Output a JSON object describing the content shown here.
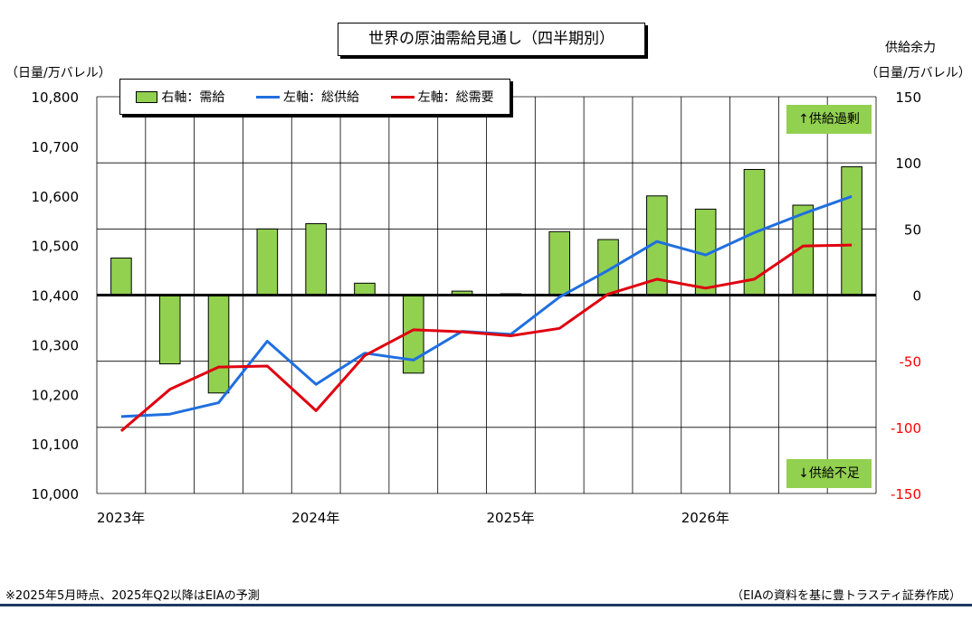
{
  "header": {
    "title": "世界の原油需給見通し（四半期別）",
    "left_unit": "（日量/万バレル）",
    "right_unit_line1": "供給余力",
    "right_unit_line2": "（日量/万バレル）"
  },
  "legend": {
    "bar_label": "右軸：需給",
    "supply_label": "左軸：総供給",
    "demand_label": "左軸：総需要"
  },
  "annotations": {
    "surplus": "↑供給過剰",
    "deficit": "↓供給不足"
  },
  "footer": {
    "note": "※2025年5月時点、2025年Q2以降はEIAの予測",
    "source": "（EIAの資料を基に豊トラスティ証券作成）"
  },
  "colors": {
    "bar": "#92d050",
    "supply": "#1f6fe0",
    "demand": "#e0000f",
    "negative_tick": "#ff0000",
    "rule": "#1f3864"
  },
  "chart_data": {
    "type": "bar+line",
    "categories": [
      "2023Q1",
      "2023Q2",
      "2023Q3",
      "2023Q4",
      "2024Q1",
      "2024Q2",
      "2024Q3",
      "2024Q4",
      "2025Q1",
      "2025Q2",
      "2025Q3",
      "2025Q4",
      "2026Q1",
      "2026Q2",
      "2026Q3",
      "2026Q4"
    ],
    "x_tick_labels": [
      {
        "label": "2023年",
        "index": 0
      },
      {
        "label": "2024年",
        "index": 4
      },
      {
        "label": "2025年",
        "index": 8
      },
      {
        "label": "2026年",
        "index": 12
      }
    ],
    "left_axis": {
      "ylim": [
        10000,
        10800
      ],
      "ticks": [
        "10,000",
        "10,100",
        "10,200",
        "10,300",
        "10,400",
        "10,500",
        "10,600",
        "10,700",
        "10,800"
      ]
    },
    "right_axis": {
      "ylim": [
        -150,
        150
      ],
      "ticks": [
        "-150",
        "-100",
        "-50",
        "0",
        "50",
        "100",
        "150"
      ]
    },
    "series": [
      {
        "name": "右軸：需給",
        "type": "bar",
        "axis": "right",
        "values": [
          28,
          -52,
          -74,
          50,
          54,
          9,
          -59,
          3,
          1,
          48,
          42,
          75,
          65,
          95,
          68,
          97
        ]
      },
      {
        "name": "左軸：総供給",
        "type": "line",
        "axis": "left",
        "values": [
          10155,
          10160,
          10183,
          10307,
          10220,
          10283,
          10269,
          10327,
          10321,
          10396,
          10450,
          10508,
          10481,
          10526,
          10564,
          10599
        ]
      },
      {
        "name": "左軸：総需要",
        "type": "line",
        "axis": "left",
        "values": [
          10126,
          10210,
          10255,
          10257,
          10167,
          10278,
          10330,
          10326,
          10318,
          10333,
          10402,
          10432,
          10414,
          10432,
          10499,
          10501
        ]
      }
    ],
    "grid": true
  }
}
